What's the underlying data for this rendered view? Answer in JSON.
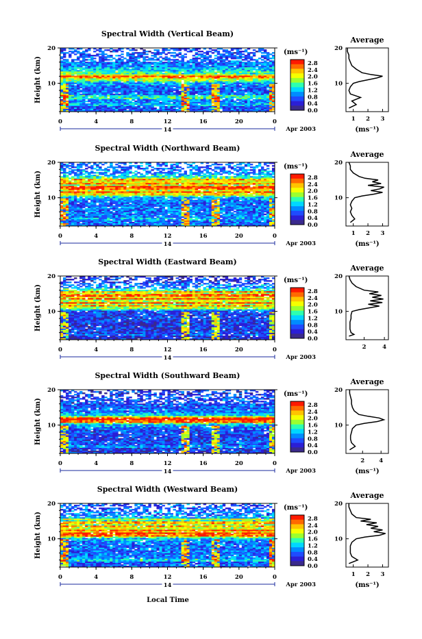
{
  "x_axis_title": "Local Time",
  "average_title": "Average",
  "ylabel": "Height (km)",
  "unit_label": "(ms⁻¹)",
  "colorbar_ticks": [
    "2.8",
    "2.4",
    "2.0",
    "1.6",
    "1.2",
    "0.8",
    "0.4",
    "0.0"
  ],
  "colorbar_colors": [
    "#ff1a00",
    "#ff6a00",
    "#ffc400",
    "#f5ff00",
    "#9cff2e",
    "#2dffb0",
    "#00d7ff",
    "#008cff",
    "#1f4bff",
    "#2b1fd6",
    "#3a2a8c"
  ],
  "time_ticks": [
    "0",
    "4",
    "8",
    "12",
    "16",
    "20",
    "0"
  ],
  "height_ticks": [
    "20",
    "10"
  ],
  "date_day": "14",
  "date_label": "Apr 2003",
  "chart_data": [
    {
      "type": "heatmap",
      "title": "Spectral Width (Vertical Beam)",
      "xlim": [
        0,
        24
      ],
      "ylim": [
        2,
        20
      ],
      "xlabel": "",
      "ylabel": "Height (km)",
      "colorbar": {
        "label": "(ms⁻¹)",
        "range": [
          0.0,
          2.8
        ]
      },
      "average": {
        "title": "Average",
        "xlabel": "(ms⁻¹)",
        "xticks": [
          "1",
          "2",
          "3"
        ],
        "xlim": [
          0.5,
          3.4
        ],
        "ylim": [
          2,
          20
        ],
        "profile": [
          [
            0.7,
            3
          ],
          [
            1.2,
            4
          ],
          [
            0.9,
            5
          ],
          [
            1.5,
            6
          ],
          [
            0.8,
            7
          ],
          [
            0.7,
            8
          ],
          [
            0.8,
            9
          ],
          [
            1.0,
            10
          ],
          [
            1.4,
            10.5
          ],
          [
            2.0,
            11
          ],
          [
            2.6,
            11.5
          ],
          [
            3.0,
            12
          ],
          [
            2.2,
            12.5
          ],
          [
            1.6,
            13
          ],
          [
            1.2,
            14
          ],
          [
            0.9,
            15
          ],
          [
            0.8,
            16
          ],
          [
            0.7,
            17
          ],
          [
            0.7,
            18
          ],
          [
            0.6,
            19
          ],
          [
            0.6,
            20
          ]
        ]
      }
    },
    {
      "type": "heatmap",
      "title": "Spectral Width (Northward Beam)",
      "xlim": [
        0,
        24
      ],
      "ylim": [
        2,
        20
      ],
      "xlabel": "",
      "ylabel": "Height (km)",
      "colorbar": {
        "label": "(ms⁻¹)",
        "range": [
          0.0,
          2.8
        ]
      },
      "average": {
        "title": "Average",
        "xlabel": "(ms⁻¹)",
        "xticks": [
          "1",
          "2",
          "3"
        ],
        "xlim": [
          0.5,
          3.4
        ],
        "ylim": [
          2,
          20
        ],
        "profile": [
          [
            0.8,
            3
          ],
          [
            1.1,
            4
          ],
          [
            0.9,
            5
          ],
          [
            0.8,
            6
          ],
          [
            0.9,
            7
          ],
          [
            0.8,
            8
          ],
          [
            0.9,
            9
          ],
          [
            1.1,
            10
          ],
          [
            1.6,
            10.5
          ],
          [
            2.4,
            11
          ],
          [
            3.0,
            11.5
          ],
          [
            2.2,
            12
          ],
          [
            2.8,
            12.5
          ],
          [
            3.1,
            13
          ],
          [
            2.0,
            13.5
          ],
          [
            2.9,
            14
          ],
          [
            2.3,
            14.5
          ],
          [
            2.7,
            15
          ],
          [
            1.8,
            15.5
          ],
          [
            1.4,
            16
          ],
          [
            1.0,
            17
          ],
          [
            0.8,
            18
          ],
          [
            0.8,
            19
          ],
          [
            0.7,
            20
          ]
        ]
      }
    },
    {
      "type": "heatmap",
      "title": "Spectral Width (Eastward Beam)",
      "xlim": [
        0,
        24
      ],
      "ylim": [
        2,
        20
      ],
      "xlabel": "",
      "ylabel": "Height (km)",
      "colorbar": {
        "label": "(ms⁻¹)",
        "range": [
          0.0,
          2.8
        ]
      },
      "average": {
        "title": "Average",
        "xlabel": "",
        "xticks": [
          "2",
          "4"
        ],
        "xlim": [
          0.2,
          4.4
        ],
        "ylim": [
          2,
          20
        ],
        "profile": [
          [
            0.5,
            3
          ],
          [
            1.0,
            3.5
          ],
          [
            0.7,
            4
          ],
          [
            0.6,
            5
          ],
          [
            0.6,
            6
          ],
          [
            0.6,
            7
          ],
          [
            0.7,
            8
          ],
          [
            0.7,
            9
          ],
          [
            0.8,
            10
          ],
          [
            1.5,
            10.5
          ],
          [
            2.5,
            11
          ],
          [
            3.5,
            11.5
          ],
          [
            2.4,
            12
          ],
          [
            3.8,
            12.5
          ],
          [
            2.6,
            13
          ],
          [
            3.9,
            13.5
          ],
          [
            2.8,
            14
          ],
          [
            3.7,
            14.5
          ],
          [
            2.5,
            15
          ],
          [
            3.4,
            15.5
          ],
          [
            2.0,
            16
          ],
          [
            1.2,
            17
          ],
          [
            0.8,
            18
          ],
          [
            0.6,
            19
          ],
          [
            0.5,
            20
          ]
        ]
      }
    },
    {
      "type": "heatmap",
      "title": "Spectral Width (Southward Beam)",
      "xlim": [
        0,
        24
      ],
      "ylim": [
        2,
        20
      ],
      "xlabel": "",
      "ylabel": "Height (km)",
      "colorbar": {
        "label": "(ms⁻¹)",
        "range": [
          0.0,
          2.8
        ]
      },
      "average": {
        "title": "Average",
        "xlabel": "(ms⁻¹)",
        "xticks": [
          "2",
          "4"
        ],
        "xlim": [
          0.2,
          4.8
        ],
        "ylim": [
          2,
          20
        ],
        "profile": [
          [
            0.6,
            3
          ],
          [
            1.2,
            4
          ],
          [
            0.8,
            5
          ],
          [
            0.7,
            6
          ],
          [
            0.7,
            7
          ],
          [
            0.8,
            8
          ],
          [
            0.9,
            9
          ],
          [
            1.3,
            10
          ],
          [
            2.2,
            10.5
          ],
          [
            3.6,
            11
          ],
          [
            4.3,
            11.5
          ],
          [
            3.8,
            12
          ],
          [
            2.6,
            12.5
          ],
          [
            1.6,
            13
          ],
          [
            1.1,
            14
          ],
          [
            0.9,
            15
          ],
          [
            0.8,
            16
          ],
          [
            0.8,
            17
          ],
          [
            0.7,
            18
          ],
          [
            0.6,
            19
          ],
          [
            0.6,
            20
          ]
        ]
      }
    },
    {
      "type": "heatmap",
      "title": "Spectral Width (Westward Beam)",
      "xlim": [
        0,
        24
      ],
      "ylim": [
        2,
        20
      ],
      "xlabel": "Local Time",
      "ylabel": "Height (km)",
      "colorbar": {
        "label": "(ms⁻¹)",
        "range": [
          0.0,
          2.8
        ]
      },
      "average": {
        "title": "Average",
        "xlabel": "(ms⁻¹)",
        "xticks": [
          "1",
          "2",
          "3"
        ],
        "xlim": [
          0.5,
          3.4
        ],
        "ylim": [
          2,
          20
        ],
        "profile": [
          [
            0.7,
            3
          ],
          [
            1.3,
            4
          ],
          [
            0.9,
            5
          ],
          [
            0.8,
            6
          ],
          [
            0.8,
            7
          ],
          [
            0.8,
            8
          ],
          [
            0.9,
            9
          ],
          [
            1.2,
            10
          ],
          [
            1.8,
            10.5
          ],
          [
            2.8,
            11
          ],
          [
            3.2,
            11.5
          ],
          [
            2.4,
            12
          ],
          [
            3.0,
            12.5
          ],
          [
            2.2,
            13
          ],
          [
            2.7,
            13.5
          ],
          [
            1.9,
            14
          ],
          [
            2.6,
            14.5
          ],
          [
            1.5,
            15
          ],
          [
            2.2,
            15.5
          ],
          [
            1.2,
            16
          ],
          [
            0.9,
            17
          ],
          [
            0.8,
            18
          ],
          [
            0.7,
            19
          ],
          [
            0.7,
            20
          ]
        ]
      }
    }
  ]
}
